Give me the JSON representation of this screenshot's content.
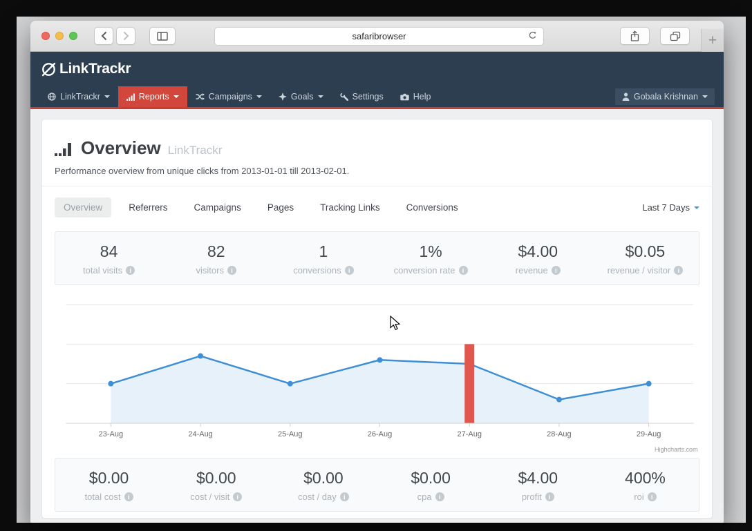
{
  "browser": {
    "url_text": "safaribrowser",
    "new_tab_label": "+"
  },
  "brand": {
    "logo_text": "LinkTrackr"
  },
  "navbar": {
    "items": [
      {
        "label": "LinkTrackr",
        "caret": true,
        "active": false
      },
      {
        "label": "Reports",
        "caret": true,
        "active": true
      },
      {
        "label": "Campaigns",
        "caret": true,
        "active": false
      },
      {
        "label": "Goals",
        "caret": true,
        "active": false
      },
      {
        "label": "Settings",
        "caret": false,
        "active": false
      },
      {
        "label": "Help",
        "caret": false,
        "active": false
      }
    ],
    "user": {
      "label": "Gobala Krishnan"
    }
  },
  "page": {
    "title": "Overview",
    "title_suffix": "LinkTrackr",
    "subtitle": "Performance overview from unique clicks from 2013-01-01 till 2013-02-01."
  },
  "tabs": {
    "items": [
      {
        "label": "Overview",
        "active": true
      },
      {
        "label": "Referrers",
        "active": false
      },
      {
        "label": "Campaigns",
        "active": false
      },
      {
        "label": "Pages",
        "active": false
      },
      {
        "label": "Tracking Links",
        "active": false
      },
      {
        "label": "Conversions",
        "active": false
      }
    ],
    "range_selector": "Last 7 Days"
  },
  "stats_top": [
    {
      "value": "84",
      "label": "total visits"
    },
    {
      "value": "82",
      "label": "visitors"
    },
    {
      "value": "1",
      "label": "conversions"
    },
    {
      "value": "1%",
      "label": "conversion rate"
    },
    {
      "value": "$4.00",
      "label": "revenue"
    },
    {
      "value": "$0.05",
      "label": "revenue / visitor"
    }
  ],
  "stats_bottom": [
    {
      "value": "$0.00",
      "label": "total cost"
    },
    {
      "value": "$0.00",
      "label": "cost / visit"
    },
    {
      "value": "$0.00",
      "label": "cost / day"
    },
    {
      "value": "$0.00",
      "label": "cpa"
    },
    {
      "value": "$4.00",
      "label": "profit"
    },
    {
      "value": "400%",
      "label": "roi"
    }
  ],
  "chart_data": {
    "type": "line",
    "categories": [
      "23-Aug",
      "24-Aug",
      "25-Aug",
      "26-Aug",
      "27-Aug",
      "28-Aug",
      "29-Aug"
    ],
    "series": [
      {
        "name": "visits",
        "type": "line",
        "values": [
          10,
          17,
          10,
          16,
          15,
          6,
          10
        ],
        "color": "#3e8fd5",
        "area_fill": "#e7f1f9"
      },
      {
        "name": "highlight-column",
        "type": "bar",
        "values": [
          null,
          null,
          null,
          null,
          20,
          null,
          null
        ],
        "color": "#e2574d"
      }
    ],
    "title": "",
    "xlabel": "",
    "ylabel": "",
    "ylim": [
      0,
      30
    ],
    "gridline_step": 10,
    "y_axis_labels_visible": false,
    "legend": "none",
    "credit": "Highcharts.com"
  },
  "colors": {
    "header_navy": "#2d3e50",
    "active_red": "#d2473c",
    "nav_underline_red": "#c63e33",
    "line_blue": "#3e8fd5",
    "bar_red": "#e2574d"
  }
}
